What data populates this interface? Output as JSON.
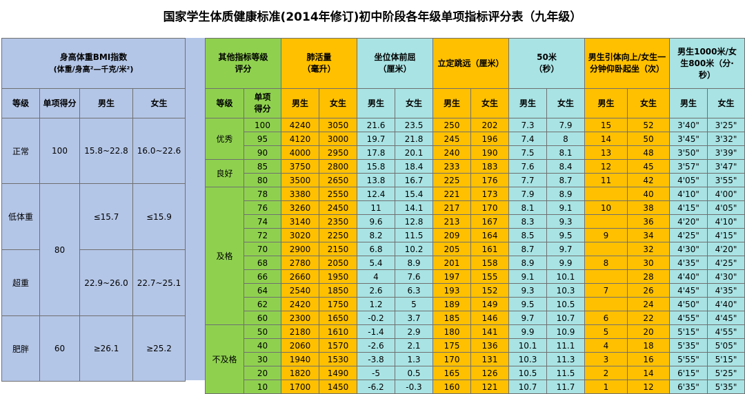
{
  "title": "国家学生体质健康标准(2014年修订)初中阶段各年级单项指标评分表（九年级）",
  "colors": {
    "blue": "#b4c6e7",
    "green": "#8fd14f",
    "yellow": "#ffc000",
    "cyan": "#a9e3e4"
  },
  "bmi": {
    "header_line1": "身高体重BMI指数",
    "header_line2": "(体重/身高²—千克/米²)",
    "col_level": "等级",
    "col_score": "单项得分",
    "col_male": "男生",
    "col_female": "女生",
    "rows": [
      {
        "level": "正常",
        "score": "100",
        "male": "15.8~22.8",
        "female": "16.0~22.6"
      },
      {
        "level": "低体重",
        "male": "≤15.7",
        "female": "≤15.9"
      },
      {
        "level": "超重",
        "male": "22.9~26.0",
        "female": "22.7~25.1"
      },
      {
        "level": "肥胖",
        "score": "60",
        "male": "≥26.1",
        "female": "≥25.2"
      }
    ],
    "shared_score_80": "80"
  },
  "other": {
    "headers": {
      "level_group": "其他指标等级评分",
      "lung": "肺活量（毫升）",
      "sit": "坐位体前屈（厘米）",
      "jump": "立定跳远（厘米）",
      "run50": "50米（秒）",
      "pull": "男生引体向上/女生一分钟仰卧起坐（次）",
      "run_long": "男生1000米/女生800米（分·秒）"
    },
    "sub": {
      "level": "等级",
      "score": "单项得分",
      "male": "男生",
      "female": "女生"
    },
    "groups": [
      {
        "label": "优秀",
        "count": 3
      },
      {
        "label": "良好",
        "count": 2
      },
      {
        "label": "及格",
        "count": 10
      },
      {
        "label": "不及格",
        "count": 5
      }
    ],
    "rows": [
      [
        "100",
        "4240",
        "3050",
        "21.6",
        "23.5",
        "250",
        "202",
        "7.3",
        "7.9",
        "15",
        "52",
        "3'40\"",
        "3'25\""
      ],
      [
        "95",
        "4120",
        "3000",
        "19.7",
        "21.8",
        "245",
        "196",
        "7.4",
        "8",
        "14",
        "50",
        "3'45\"",
        "3'32\""
      ],
      [
        "90",
        "4000",
        "2950",
        "17.8",
        "20.1",
        "240",
        "190",
        "7.5",
        "8.1",
        "13",
        "48",
        "3'50\"",
        "3'39\""
      ],
      [
        "85",
        "3750",
        "2800",
        "15.8",
        "18.4",
        "233",
        "183",
        "7.6",
        "8.4",
        "12",
        "45",
        "3'57\"",
        "3'47\""
      ],
      [
        "80",
        "3500",
        "2650",
        "13.8",
        "16.7",
        "225",
        "176",
        "7.7",
        "8.7",
        "11",
        "42",
        "4'05\"",
        "3'55\""
      ],
      [
        "78",
        "3380",
        "2550",
        "12.4",
        "15.4",
        "221",
        "173",
        "7.9",
        "8.9",
        "",
        "40",
        "4'10\"",
        "4'00\""
      ],
      [
        "76",
        "3260",
        "2450",
        "11",
        "14.1",
        "217",
        "170",
        "8.1",
        "9.1",
        "10",
        "38",
        "4'15\"",
        "4'05\""
      ],
      [
        "74",
        "3140",
        "2350",
        "9.6",
        "12.8",
        "213",
        "167",
        "8.3",
        "9.3",
        "",
        "36",
        "4'20\"",
        "4'10\""
      ],
      [
        "72",
        "3020",
        "2250",
        "8.2",
        "11.5",
        "209",
        "164",
        "8.5",
        "9.5",
        "9",
        "34",
        "4'25\"",
        "4'15\""
      ],
      [
        "70",
        "2900",
        "2150",
        "6.8",
        "10.2",
        "205",
        "161",
        "8.7",
        "9.7",
        "",
        "32",
        "4'30\"",
        "4'20\""
      ],
      [
        "68",
        "2780",
        "2050",
        "5.4",
        "8.9",
        "201",
        "158",
        "8.9",
        "9.9",
        "8",
        "30",
        "4'35\"",
        "4'25\""
      ],
      [
        "66",
        "2660",
        "1950",
        "4",
        "7.6",
        "197",
        "155",
        "9.1",
        "10.1",
        "",
        "28",
        "4'40\"",
        "4'30\""
      ],
      [
        "64",
        "2540",
        "1850",
        "2.6",
        "6.3",
        "193",
        "152",
        "9.3",
        "10.3",
        "7",
        "26",
        "4'45\"",
        "4'35\""
      ],
      [
        "62",
        "2420",
        "1750",
        "1.2",
        "5",
        "189",
        "149",
        "9.5",
        "10.5",
        "",
        "24",
        "4'50\"",
        "4'40\""
      ],
      [
        "60",
        "2300",
        "1650",
        "-0.2",
        "3.7",
        "185",
        "146",
        "9.7",
        "10.7",
        "6",
        "22",
        "4'55\"",
        "4'45\""
      ],
      [
        "50",
        "2180",
        "1610",
        "-1.4",
        "2.9",
        "180",
        "141",
        "9.9",
        "10.9",
        "5",
        "20",
        "5'15\"",
        "4'55\""
      ],
      [
        "40",
        "2060",
        "1570",
        "-2.6",
        "2.1",
        "175",
        "136",
        "10.1",
        "11.1",
        "4",
        "18",
        "5'35\"",
        "5'05\""
      ],
      [
        "30",
        "1940",
        "1530",
        "-3.8",
        "1.3",
        "170",
        "131",
        "10.3",
        "11.3",
        "3",
        "16",
        "5'55\"",
        "5'15\""
      ],
      [
        "20",
        "1820",
        "1490",
        "-5",
        "0.5",
        "165",
        "126",
        "10.5",
        "11.5",
        "2",
        "14",
        "6'15\"",
        "5'25\""
      ],
      [
        "10",
        "1700",
        "1450",
        "-6.2",
        "-0.3",
        "160",
        "121",
        "10.7",
        "11.7",
        "1",
        "12",
        "6'35\"",
        "5'35\""
      ]
    ]
  }
}
